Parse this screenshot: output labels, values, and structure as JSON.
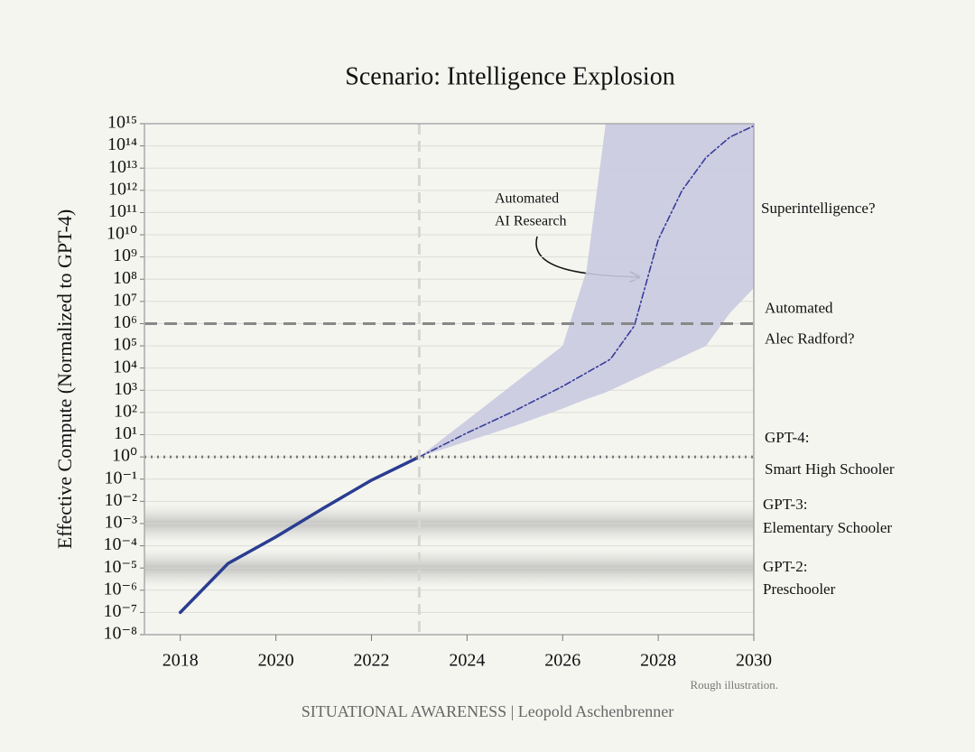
{
  "chart_data": {
    "type": "line",
    "title": "Scenario: Intelligence Explosion",
    "y_label": "Effective Compute (Normalized to GPT-4)",
    "log_y": true,
    "grid": true,
    "xlim": [
      2017.25,
      2030
    ],
    "xticks": [
      2018,
      2020,
      2022,
      2024,
      2026,
      2028,
      2030
    ],
    "ylim": [
      1e-08,
      1000000000000000.0
    ],
    "yticks": [
      {
        "value": 1e-08,
        "label": "10⁻⁸"
      },
      {
        "value": 1e-07,
        "label": "10⁻⁷"
      },
      {
        "value": 1e-06,
        "label": "10⁻⁶"
      },
      {
        "value": 1e-05,
        "label": "10⁻⁵"
      },
      {
        "value": 0.0001,
        "label": "10⁻⁴"
      },
      {
        "value": 0.001,
        "label": "10⁻³"
      },
      {
        "value": 0.01,
        "label": "10⁻²"
      },
      {
        "value": 0.1,
        "label": "10⁻¹"
      },
      {
        "value": 1,
        "label": "10⁰"
      },
      {
        "value": 10,
        "label": "10¹"
      },
      {
        "value": 100,
        "label": "10²"
      },
      {
        "value": 1000,
        "label": "10³"
      },
      {
        "value": 10000.0,
        "label": "10⁴"
      },
      {
        "value": 100000.0,
        "label": "10⁵"
      },
      {
        "value": 1000000.0,
        "label": "10⁶"
      },
      {
        "value": 10000000.0,
        "label": "10⁷"
      },
      {
        "value": 100000000.0,
        "label": "10⁸"
      },
      {
        "value": 1000000000.0,
        "label": "10⁹"
      },
      {
        "value": 10000000000.0,
        "label": "10¹⁰"
      },
      {
        "value": 100000000000.0,
        "label": "10¹¹"
      },
      {
        "value": 1000000000000.0,
        "label": "10¹²"
      },
      {
        "value": 10000000000000.0,
        "label": "10¹³"
      },
      {
        "value": 100000000000000.0,
        "label": "10¹⁴"
      },
      {
        "value": 1000000000000000.0,
        "label": "10¹⁵"
      }
    ],
    "series": [
      {
        "style": "solid",
        "color": "#2a3d91",
        "x": [
          2018,
          2019,
          2020,
          2021,
          2022,
          2023
        ],
        "values": [
          1e-07,
          1.6e-05,
          0.00025,
          0.005,
          0.09,
          1
        ]
      },
      {
        "style": "dashdot",
        "color": "#3a3d9a",
        "x": [
          2023,
          2024,
          2025,
          2026,
          2027,
          2027.5,
          2028,
          2028.5,
          2029,
          2029.5,
          2030
        ],
        "values": [
          1,
          12,
          120,
          1500,
          25000.0,
          800000.0,
          6000000000.0,
          1000000000000.0,
          30000000000000.0,
          250000000000000.0,
          800000000000000.0
        ]
      }
    ],
    "band": {
      "color": "#c9cae0",
      "x": [
        2023,
        2024,
        2025,
        2026,
        2026.5,
        2026.9,
        2027,
        2028,
        2029,
        2029.5,
        2030
      ],
      "upper": [
        1,
        46,
        2150,
        100000.0,
        250000000.0,
        1000000000000000.0,
        1000000000000000.0,
        1000000000000000.0,
        1000000000000000.0,
        1000000000000000.0,
        1000000000000000.0
      ],
      "lower": [
        1,
        5,
        25,
        150,
        400,
        800,
        1000,
        10000.0,
        100000.0,
        3000000.0,
        40000000.0
      ]
    },
    "vline": 2023,
    "reference_lines": [
      {
        "value": 1000000.0,
        "style": "dashed",
        "label": [
          "Automated",
          "Alec Radford?"
        ]
      },
      {
        "value": 1,
        "style": "dotted",
        "label": [
          "GPT-4:",
          "Smart High Schooler"
        ]
      }
    ],
    "bands": [
      {
        "value": 0.001,
        "label": [
          "GPT-3:",
          "Elementary Schooler"
        ]
      },
      {
        "value": 1e-05,
        "label": [
          "GPT-2:",
          "Preschooler"
        ]
      }
    ],
    "annotations": [
      "Superintelligence?",
      "Automated",
      "AI Research"
    ],
    "note": "Rough illustration.",
    "source": "SITUATIONAL AWARENESS | Leopold Aschenbrenner"
  }
}
